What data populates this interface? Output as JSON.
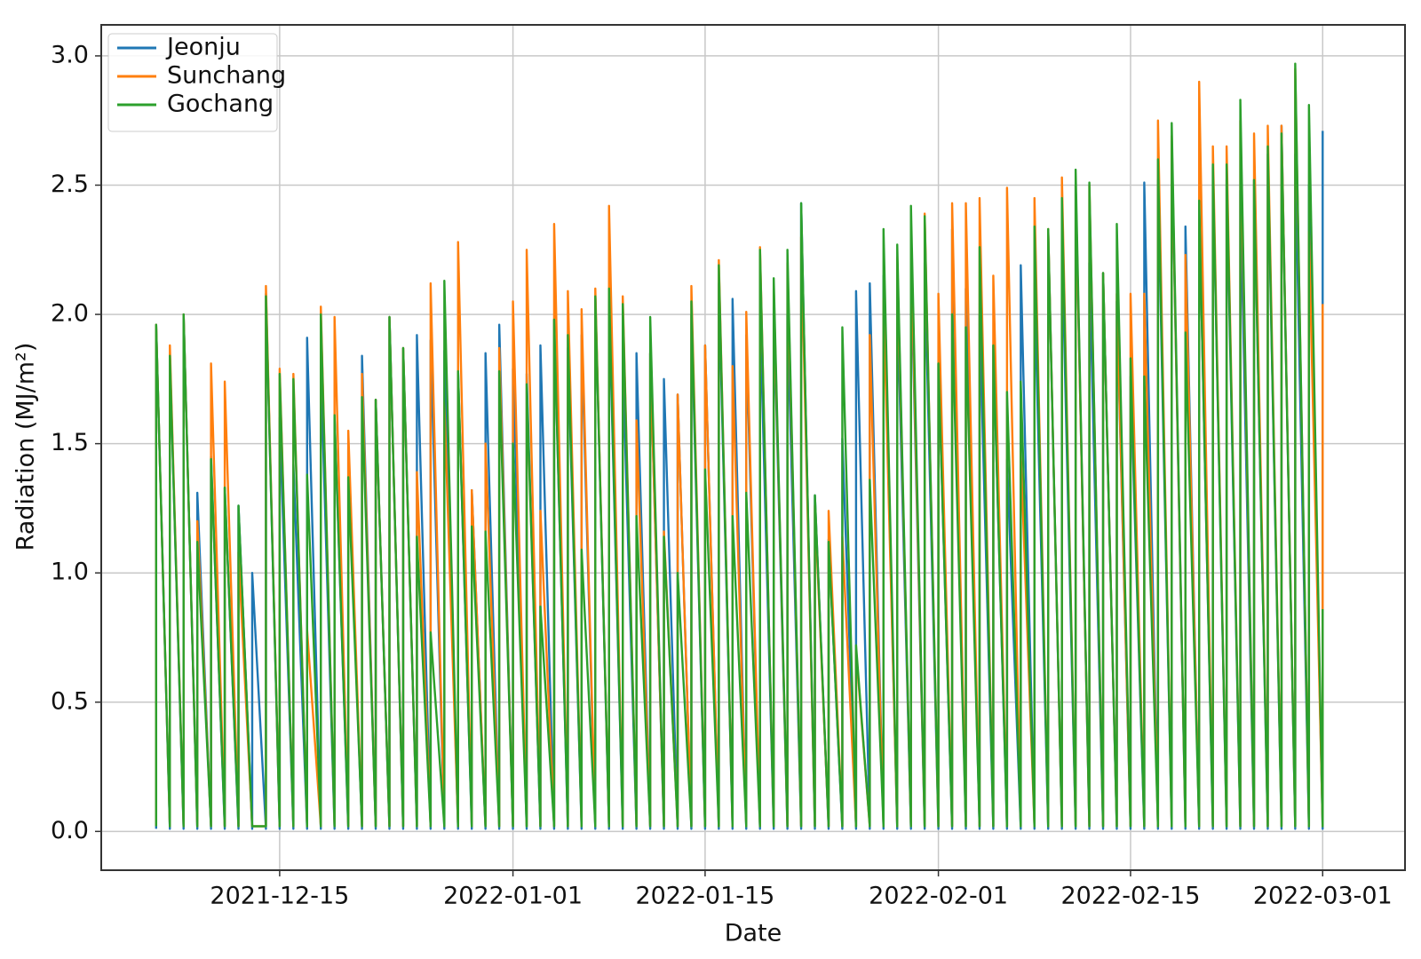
{
  "chart_data": {
    "type": "line",
    "x_label": "Date",
    "y_label": "Radiation (MJ/m²)",
    "x": [
      "2021-12-06",
      "2021-12-06",
      "2021-12-07",
      "2021-12-07",
      "2021-12-08",
      "2021-12-08",
      "2021-12-09",
      "2021-12-09",
      "2021-12-10",
      "2021-12-10",
      "2021-12-11",
      "2021-12-11",
      "2021-12-12",
      "2021-12-12",
      "2021-12-13",
      "2021-12-13",
      "2021-12-14",
      "2021-12-14",
      "2021-12-15",
      "2021-12-15",
      "2021-12-16",
      "2021-12-16",
      "2021-12-17",
      "2021-12-17",
      "2021-12-18",
      "2021-12-18",
      "2021-12-19",
      "2021-12-19",
      "2021-12-20",
      "2021-12-20",
      "2021-12-21",
      "2021-12-21",
      "2021-12-22",
      "2021-12-22",
      "2021-12-23",
      "2021-12-23",
      "2021-12-24",
      "2021-12-24",
      "2021-12-25",
      "2021-12-25",
      "2021-12-26",
      "2021-12-26",
      "2021-12-27",
      "2021-12-27",
      "2021-12-28",
      "2021-12-28",
      "2021-12-29",
      "2021-12-29",
      "2021-12-30",
      "2021-12-30",
      "2021-12-31",
      "2021-12-31",
      "2022-01-01",
      "2022-01-01",
      "2022-01-02",
      "2022-01-02",
      "2022-01-03",
      "2022-01-03",
      "2022-01-04",
      "2022-01-04",
      "2022-01-05",
      "2022-01-05",
      "2022-01-06",
      "2022-01-06",
      "2022-01-07",
      "2022-01-07",
      "2022-01-08",
      "2022-01-08",
      "2022-01-09",
      "2022-01-09",
      "2022-01-10",
      "2022-01-10",
      "2022-01-11",
      "2022-01-11",
      "2022-01-12",
      "2022-01-12",
      "2022-01-13",
      "2022-01-13",
      "2022-01-14",
      "2022-01-14",
      "2022-01-15",
      "2022-01-15",
      "2022-01-16",
      "2022-01-16",
      "2022-01-17",
      "2022-01-17",
      "2022-01-18",
      "2022-01-18",
      "2022-01-19",
      "2022-01-19",
      "2022-01-20",
      "2022-01-20",
      "2022-01-21",
      "2022-01-21",
      "2022-01-22",
      "2022-01-22",
      "2022-01-23",
      "2022-01-23",
      "2022-01-24",
      "2022-01-24",
      "2022-01-25",
      "2022-01-25",
      "2022-01-26",
      "2022-01-26",
      "2022-01-27",
      "2022-01-27",
      "2022-01-28",
      "2022-01-28",
      "2022-01-29",
      "2022-01-29",
      "2022-01-30",
      "2022-01-30",
      "2022-01-31",
      "2022-01-31",
      "2022-02-01",
      "2022-02-01",
      "2022-02-02",
      "2022-02-02",
      "2022-02-03",
      "2022-02-03",
      "2022-02-04",
      "2022-02-04",
      "2022-02-05",
      "2022-02-05",
      "2022-02-06",
      "2022-02-06",
      "2022-02-07",
      "2022-02-07",
      "2022-02-08",
      "2022-02-08",
      "2022-02-09",
      "2022-02-09",
      "2022-02-10",
      "2022-02-10",
      "2022-02-11",
      "2022-02-11",
      "2022-02-12",
      "2022-02-12",
      "2022-02-13",
      "2022-02-13",
      "2022-02-14",
      "2022-02-14",
      "2022-02-15",
      "2022-02-15",
      "2022-02-16",
      "2022-02-16",
      "2022-02-17",
      "2022-02-17",
      "2022-02-18",
      "2022-02-18",
      "2022-02-19",
      "2022-02-19",
      "2022-02-20",
      "2022-02-20",
      "2022-02-21",
      "2022-02-21",
      "2022-02-22",
      "2022-02-22",
      "2022-02-23",
      "2022-02-23",
      "2022-02-24",
      "2022-02-24",
      "2022-02-25",
      "2022-02-25",
      "2022-02-26",
      "2022-02-26",
      "2022-02-27",
      "2022-02-27",
      "2022-02-28",
      "2022-02-28",
      "2022-03-01",
      "2022-03-01"
    ],
    "series": [
      {
        "name": "Jeonju",
        "color": "#1f77b4",
        "values": [
          0.01,
          1.96,
          0.01,
          1.84,
          0.01,
          2.0,
          0.01,
          1.31,
          0.01,
          1.45,
          0.01,
          1.33,
          0.01,
          1.26,
          0.01,
          1.0,
          0.01,
          2.08,
          0.01,
          1.6,
          0.01,
          1.42,
          0.01,
          1.91,
          0.01,
          1.8,
          0.01,
          1.6,
          0.01,
          1.48,
          0.01,
          1.84,
          0.01,
          1.67,
          0.01,
          1.99,
          0.01,
          1.87,
          0.01,
          1.92,
          0.01,
          1.9,
          0.01,
          1.86,
          0.01,
          1.78,
          0.01,
          1.32,
          0.01,
          1.85,
          0.01,
          1.96,
          0.01,
          1.79,
          0.01,
          1.77,
          0.01,
          1.88,
          0.01,
          1.98,
          0.01,
          1.87,
          0.01,
          1.92,
          0.01,
          2.07,
          0.01,
          2.05,
          0.01,
          1.82,
          0.01,
          1.85,
          0.01,
          1.85,
          0.01,
          1.75,
          0.01,
          1.69,
          0.01,
          2.0,
          0.01,
          1.88,
          0.01,
          2.12,
          0.01,
          2.06,
          0.01,
          1.92,
          0.01,
          2.02,
          0.01,
          2.03,
          0.01,
          2.0,
          0.01,
          2.43,
          0.01,
          1.3,
          0.01,
          1.13,
          0.01,
          1.52,
          0.01,
          2.09,
          0.01,
          2.12,
          0.01,
          2.15,
          0.01,
          2.07,
          0.01,
          2.2,
          0.01,
          2.2,
          0.01,
          1.81,
          0.01,
          2.33,
          0.01,
          2.1,
          0.01,
          2.0,
          0.01,
          1.88,
          0.01,
          1.44,
          0.01,
          2.19,
          0.01,
          2.12,
          0.01,
          2.32,
          0.01,
          2.29,
          0.01,
          2.5,
          0.01,
          2.2,
          0.01,
          2.16,
          0.01,
          2.05,
          0.01,
          1.76,
          0.01,
          2.51,
          0.01,
          2.52,
          0.01,
          2.67,
          0.01,
          2.34,
          0.01,
          2.44,
          0.01,
          2.57,
          0.01,
          2.52,
          0.01,
          2.48,
          0.01,
          2.52,
          0.01,
          2.62,
          0.01,
          2.73,
          0.01,
          2.62,
          0.01,
          2.5,
          0.01,
          2.71
        ]
      },
      {
        "name": "Sunchang",
        "color": "#ff7f0e",
        "values": [
          0.02,
          1.96,
          0.02,
          1.88,
          0.02,
          2.0,
          0.02,
          1.2,
          0.02,
          1.81,
          0.02,
          1.74,
          0.02,
          1.08,
          0.02,
          0.02,
          0.02,
          2.11,
          0.02,
          1.79,
          0.02,
          1.77,
          0.02,
          0.78,
          0.02,
          2.03,
          0.02,
          1.99,
          0.02,
          1.55,
          0.02,
          1.77,
          0.02,
          1.67,
          0.02,
          1.99,
          0.02,
          1.87,
          0.02,
          1.39,
          0.02,
          2.12,
          0.02,
          1.66,
          0.02,
          2.28,
          0.02,
          1.32,
          0.02,
          1.5,
          0.02,
          1.87,
          0.02,
          2.05,
          0.02,
          2.25,
          0.02,
          1.24,
          0.02,
          2.35,
          0.02,
          2.09,
          0.02,
          2.02,
          0.02,
          2.1,
          0.02,
          2.42,
          0.02,
          2.07,
          0.02,
          1.59,
          0.02,
          1.85,
          0.02,
          1.16,
          0.02,
          1.69,
          0.02,
          2.11,
          0.02,
          1.88,
          0.02,
          2.21,
          0.02,
          1.8,
          0.02,
          2.01,
          0.02,
          2.26,
          0.02,
          2.1,
          0.02,
          2.2,
          0.02,
          2.3,
          0.02,
          1.26,
          0.02,
          1.24,
          0.02,
          1.14,
          0.02,
          0.7,
          0.02,
          1.92,
          0.02,
          2.06,
          0.02,
          2.22,
          0.02,
          2.29,
          0.02,
          2.39,
          0.02,
          2.08,
          0.02,
          2.43,
          0.02,
          2.43,
          0.02,
          2.45,
          0.02,
          2.15,
          0.02,
          2.49,
          0.02,
          1.47,
          0.02,
          2.45,
          0.02,
          2.33,
          0.02,
          2.53,
          0.02,
          2.5,
          0.02,
          2.5,
          0.02,
          2.16,
          0.02,
          2.08,
          0.02,
          2.08,
          0.02,
          2.08,
          0.02,
          2.75,
          0.02,
          2.69,
          0.02,
          2.23,
          0.02,
          2.9,
          0.02,
          2.65,
          0.02,
          2.65,
          0.02,
          2.75,
          0.02,
          2.7,
          0.02,
          2.73,
          0.02,
          2.73,
          0.02,
          2.95,
          0.02,
          2.32,
          0.02,
          2.04
        ]
      },
      {
        "name": "Gochang",
        "color": "#2ca02c",
        "values": [
          0.02,
          1.96,
          0.02,
          1.84,
          0.02,
          2.0,
          0.02,
          1.12,
          0.02,
          1.44,
          0.02,
          1.33,
          0.02,
          1.26,
          0.02,
          0.02,
          0.02,
          2.07,
          0.02,
          1.77,
          0.02,
          1.75,
          0.02,
          1.38,
          0.02,
          2.0,
          0.02,
          1.61,
          0.02,
          1.37,
          0.02,
          1.68,
          0.02,
          1.67,
          0.02,
          1.99,
          0.02,
          1.87,
          0.02,
          1.14,
          0.02,
          0.77,
          0.02,
          2.13,
          0.02,
          1.78,
          0.02,
          1.18,
          0.02,
          1.16,
          0.02,
          1.78,
          0.02,
          1.5,
          0.02,
          1.73,
          0.02,
          0.87,
          0.02,
          1.98,
          0.02,
          1.92,
          0.02,
          1.09,
          0.02,
          2.07,
          0.02,
          2.1,
          0.02,
          2.04,
          0.02,
          1.22,
          0.02,
          1.99,
          0.02,
          1.14,
          0.02,
          1.0,
          0.02,
          2.05,
          0.02,
          1.4,
          0.02,
          2.19,
          0.02,
          1.22,
          0.02,
          1.31,
          0.02,
          2.25,
          0.02,
          2.14,
          0.02,
          2.25,
          0.02,
          2.43,
          0.02,
          1.3,
          0.02,
          1.12,
          0.02,
          1.95,
          0.02,
          0.72,
          0.02,
          1.36,
          0.02,
          2.33,
          0.02,
          2.27,
          0.02,
          2.42,
          0.02,
          2.38,
          0.02,
          1.81,
          0.02,
          2.0,
          0.02,
          1.95,
          0.02,
          2.26,
          0.02,
          1.88,
          0.02,
          1.7,
          0.02,
          1.74,
          0.02,
          2.34,
          0.02,
          2.33,
          0.02,
          2.45,
          0.02,
          2.56,
          0.02,
          2.51,
          0.02,
          2.16,
          0.02,
          2.35,
          0.02,
          1.83,
          0.02,
          1.76,
          0.02,
          2.6,
          0.02,
          2.74,
          0.02,
          1.93,
          0.02,
          2.44,
          0.02,
          2.58,
          0.02,
          2.58,
          0.02,
          2.83,
          0.02,
          2.52,
          0.02,
          2.65,
          0.02,
          2.7,
          0.02,
          2.97,
          0.02,
          2.81,
          0.02,
          0.86
        ]
      }
    ],
    "xlim": [
      "2021-12-02",
      "2022-03-07"
    ],
    "xticks": [
      "2021-12-15",
      "2022-01-01",
      "2022-01-15",
      "2022-02-01",
      "2022-02-15",
      "2022-03-01"
    ],
    "ylim": [
      -0.15,
      3.12
    ],
    "yticks": [
      {
        "value": 0,
        "label": "0.0"
      },
      0.5,
      {
        "value": 1,
        "label": "1.0"
      },
      1.5,
      {
        "value": 2,
        "label": "2.0"
      },
      2.5,
      {
        "value": 3,
        "label": "3.0"
      }
    ],
    "grid": true,
    "legend": "upper left"
  }
}
